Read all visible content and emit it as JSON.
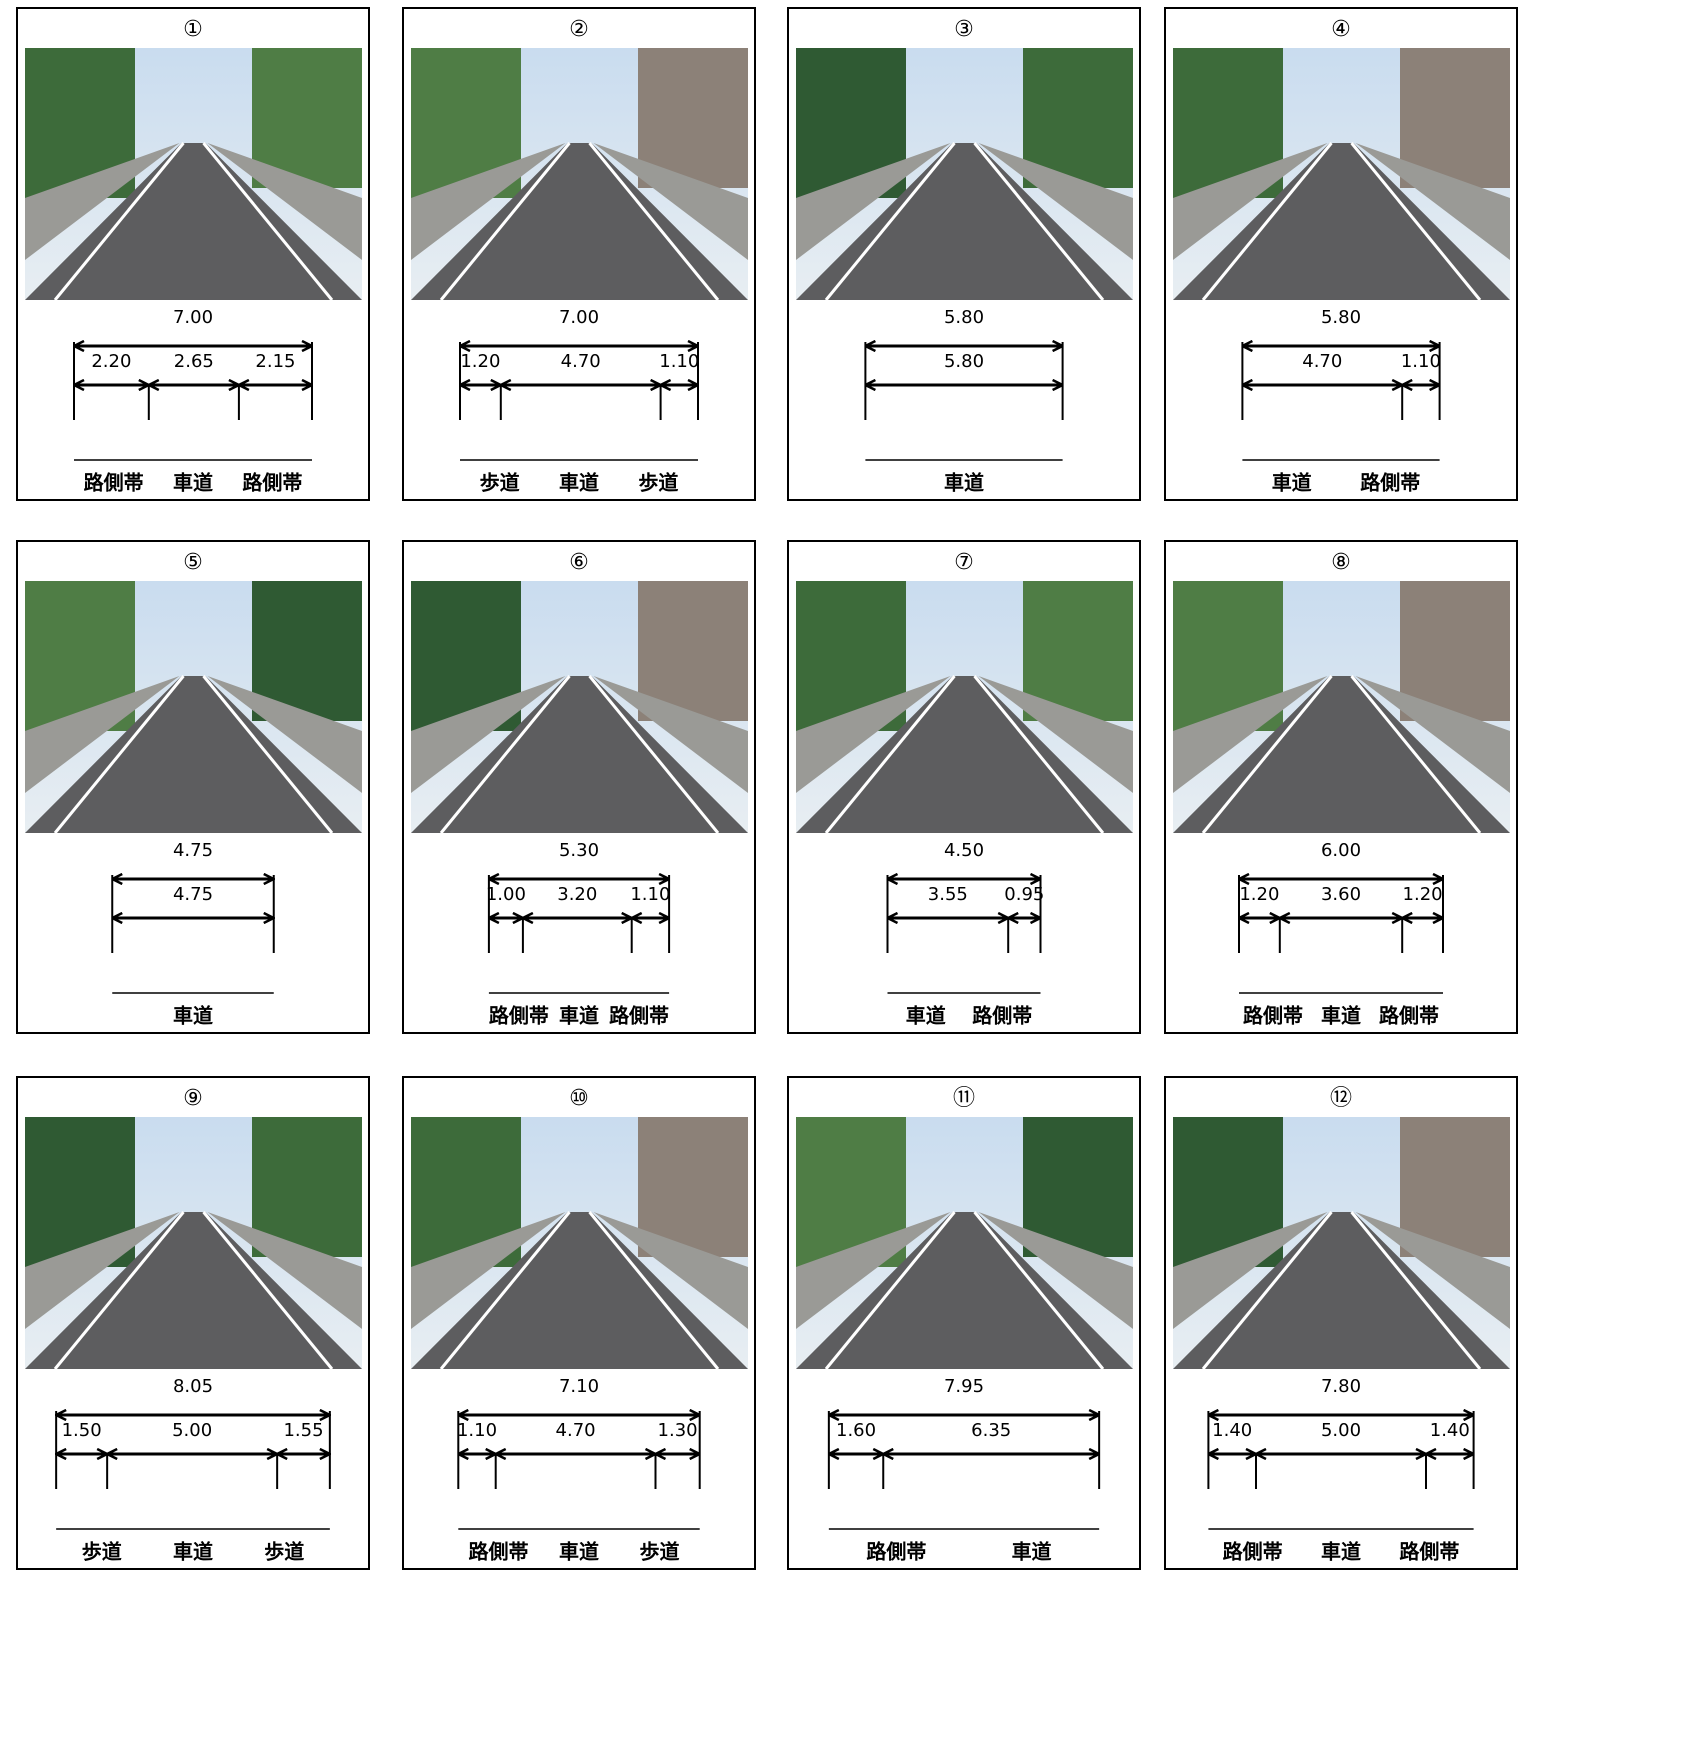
{
  "panels": [
    {
      "number": "①",
      "total": "7.00",
      "segments": [
        "2.20",
        "2.65",
        "2.15"
      ],
      "labels": [
        "路側帯",
        "車道",
        "路側帯"
      ]
    },
    {
      "number": "②",
      "total": "7.00",
      "segments": [
        "1.20",
        "4.70",
        "1.10"
      ],
      "labels": [
        "歩道",
        "車道",
        "歩道"
      ]
    },
    {
      "number": "③",
      "total": "5.80",
      "segments": [
        "5.80"
      ],
      "labels": [
        "車道"
      ]
    },
    {
      "number": "④",
      "total": "5.80",
      "segments": [
        "4.70",
        "1.10"
      ],
      "labels": [
        "車道",
        "路側帯"
      ]
    },
    {
      "number": "⑤",
      "total": "4.75",
      "segments": [
        "4.75"
      ],
      "labels": [
        "車道"
      ]
    },
    {
      "number": "⑥",
      "total": "5.30",
      "segments": [
        "1.00",
        "3.20",
        "1.10"
      ],
      "labels": [
        "路側帯",
        "車道",
        "路側帯"
      ]
    },
    {
      "number": "⑦",
      "total": "4.50",
      "segments": [
        "3.55",
        "0.95"
      ],
      "labels": [
        "車道",
        "路側帯"
      ]
    },
    {
      "number": "⑧",
      "total": "6.00",
      "segments": [
        "1.20",
        "3.60",
        "1.20"
      ],
      "labels": [
        "路側帯",
        "車道",
        "路側帯"
      ]
    },
    {
      "number": "⑨",
      "total": "8.05",
      "segments": [
        "1.50",
        "5.00",
        "1.55"
      ],
      "labels": [
        "歩道",
        "車道",
        "歩道"
      ]
    },
    {
      "number": "⑩",
      "total": "7.10",
      "segments": [
        "1.10",
        "4.70",
        "1.30"
      ],
      "labels": [
        "路側帯",
        "車道",
        "歩道"
      ]
    },
    {
      "number": "⑪",
      "total": "7.95",
      "segments": [
        "1.60",
        "6.35"
      ],
      "labels": [
        "路側帯",
        "車道"
      ]
    },
    {
      "number": "⑫",
      "total": "7.80",
      "segments": [
        "1.40",
        "5.00",
        "1.40"
      ],
      "labels": [
        "路側帯",
        "車道",
        "路側帯"
      ]
    }
  ]
}
